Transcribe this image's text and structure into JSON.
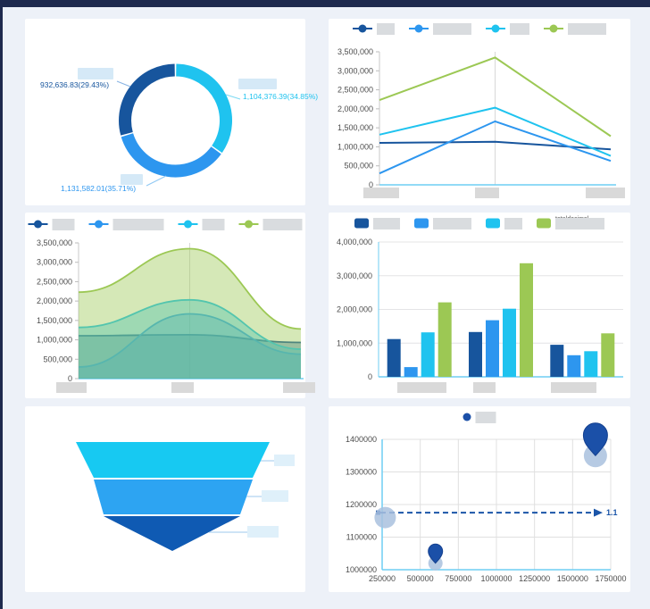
{
  "page": {
    "bg": "#edf1f8",
    "topbar_color": "#1e2a4e",
    "card_bg": "#ffffff",
    "axis_accent_color": "#6fcdf3",
    "note": "all category/series name labels in the source screenshot are blurred (redacted)"
  },
  "chart_data": [
    {
      "id": "donut",
      "type": "pie",
      "donut": true,
      "direction": "clockwise",
      "start_angle_deg_from_top": 0,
      "slices": [
        {
          "label": "",
          "label_redacted": true,
          "value": 1104376.39,
          "pct": 34.85,
          "display": "1,104,376.39(34.85%)",
          "color": "#1fc3ef"
        },
        {
          "label": "",
          "label_redacted": true,
          "value": 1131582.01,
          "pct": 35.71,
          "display": "1,131,582.01(35.71%)",
          "color": "#2d96ef"
        },
        {
          "label": "",
          "label_redacted": true,
          "value": 932636.83,
          "pct": 29.43,
          "display": "932,636.83(29.43%)",
          "color": "#17559d"
        }
      ]
    },
    {
      "id": "line",
      "type": "line",
      "legend_position": "top",
      "legend_style": "line-dot",
      "categories": [
        "",
        "",
        ""
      ],
      "categories_redacted": true,
      "series": [
        {
          "name": "",
          "name_redacted": true,
          "color": "#17559d",
          "values": [
            1104376.39,
            1131582.01,
            932636.83
          ]
        },
        {
          "name": "",
          "name_redacted": true,
          "color": "#2d96ef",
          "values": [
            300000,
            1670000,
            630000
          ]
        },
        {
          "name": "",
          "name_redacted": true,
          "color": "#1fc3ef",
          "values": [
            1320000,
            2030000,
            760000
          ]
        },
        {
          "name": "",
          "name_redacted": true,
          "color": "#9cc854",
          "values": [
            2230000,
            3350000,
            1280000
          ]
        }
      ],
      "ylim": [
        0,
        3500000
      ],
      "ytick_step": 500000,
      "ytick_format": "thousands-comma",
      "grid": "center-vertical-line"
    },
    {
      "id": "area",
      "type": "area",
      "legend_position": "top",
      "legend_style": "line-dot",
      "smooth": true,
      "categories": [
        "",
        "",
        ""
      ],
      "categories_redacted": true,
      "series": [
        {
          "name": "",
          "name_redacted": true,
          "color": "#17559d",
          "values": [
            1104376.39,
            1131582.01,
            932636.83
          ]
        },
        {
          "name": "",
          "name_redacted": true,
          "color": "#2d96ef",
          "values": [
            300000,
            1670000,
            630000
          ]
        },
        {
          "name": "",
          "name_redacted": true,
          "color": "#1fc3ef",
          "values": [
            1320000,
            2030000,
            760000
          ]
        },
        {
          "name": "",
          "name_redacted": true,
          "color": "#9cc854",
          "values": [
            2230000,
            3350000,
            1280000
          ]
        }
      ],
      "ylim": [
        0,
        3500000
      ],
      "ytick_step": 500000,
      "ytick_format": "thousands-comma",
      "grid": "center-vertical-line"
    },
    {
      "id": "bar",
      "type": "bar",
      "legend_position": "top",
      "legend_style": "rounded-rect",
      "categories": [
        "",
        "",
        ""
      ],
      "categories_redacted": true,
      "series": [
        {
          "name": "",
          "name_redacted": true,
          "color": "#17559d",
          "values": [
            1120000,
            1330000,
            950000
          ]
        },
        {
          "name": "",
          "name_redacted": true,
          "color": "#2d96ef",
          "values": [
            290000,
            1680000,
            640000
          ]
        },
        {
          "name": "",
          "name_redacted": true,
          "color": "#1fc3ef",
          "values": [
            1320000,
            2020000,
            760000
          ]
        },
        {
          "name": "totaldecimal",
          "name_partially_visible": true,
          "color": "#9cc854",
          "values": [
            2210000,
            3370000,
            1290000
          ]
        }
      ],
      "ylim": [
        0,
        4000000
      ],
      "ytick_step": 1000000,
      "ytick_format": "thousands-comma",
      "grid": "horizontal"
    },
    {
      "id": "funnel",
      "type": "funnel",
      "shape": "inverted-funnel-with-pointed-bottom",
      "segments": [
        {
          "label": "",
          "label_redacted": true,
          "color": "#17c9f2"
        },
        {
          "label": "",
          "label_redacted": true,
          "color": "#2da4f2"
        },
        {
          "label": "",
          "label_redacted": true,
          "color": "#0f5ab3"
        }
      ]
    },
    {
      "id": "scatter",
      "type": "scatter",
      "legend_position": "top",
      "legend_style": "dot",
      "series_name": "",
      "series_name_redacted": true,
      "point_color": "#1b50a8",
      "bubble_color": "#a9c1de",
      "points": [
        {
          "x": 270000,
          "y": 1160000,
          "bubble_r": 12,
          "pin": "none"
        },
        {
          "x": 600000,
          "y": 1020000,
          "bubble_r": 8,
          "pin": "small"
        },
        {
          "x": 1650000,
          "y": 1350000,
          "bubble_r": 13,
          "pin": "large"
        }
      ],
      "xlim": [
        250000,
        1750000
      ],
      "xtick_step": 250000,
      "ylim": [
        1000000,
        1400000
      ],
      "ytick_step": 100000,
      "tick_format": "plain",
      "grid": "both",
      "markline": {
        "y": 1175000,
        "label": "1.1",
        "style": "dashed-arrow",
        "color": "#1b55a8"
      }
    }
  ]
}
